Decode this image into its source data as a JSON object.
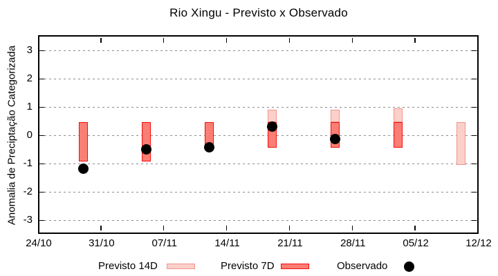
{
  "title": "Rio Xingu - Previsto x Observado",
  "colors": {
    "background": "#ffffff",
    "axis": "#000000",
    "grid": "#8a8a8a",
    "previsto14d_fill": "#fbd0ca",
    "previsto14d_border": "#f2938c",
    "previsto7d_fill": "#fb7e74",
    "previsto7d_border": "#f40b0b",
    "observado": "#000000"
  },
  "chart_data": {
    "type": "bar",
    "title": "Rio Xingu - Previsto x Observado",
    "xlabel": "",
    "ylabel": "Anomalia de Preciptação Categorizada",
    "ylim": [
      -3.5,
      3.5
    ],
    "yticks": [
      3,
      2,
      1,
      0,
      -1,
      -2,
      -3
    ],
    "xtick_labels": [
      "24/10",
      "31/10",
      "07/11",
      "14/11",
      "21/11",
      "28/11",
      "05/12",
      "12/12"
    ],
    "xtick_interval_days": 7,
    "x_total_days": 49,
    "grid": "horizontal-dashed",
    "legend_position": "bottom",
    "series": [
      {
        "name": "Previsto 14D",
        "type": "box",
        "fill": "#fbd0ca",
        "border": "#f2938c",
        "points": [
          {
            "date": "19/11",
            "day": 26,
            "low": 0.45,
            "high": 0.9
          },
          {
            "date": "26/11",
            "day": 33,
            "low": 0.45,
            "high": 0.9
          },
          {
            "date": "03/12",
            "day": 40,
            "low": 0.45,
            "high": 0.95
          },
          {
            "date": "10/12",
            "day": 47,
            "low": -1.05,
            "high": 0.45
          }
        ]
      },
      {
        "name": "Previsto 7D",
        "type": "box",
        "fill": "#fb7e74",
        "border": "#f40b0b",
        "points": [
          {
            "date": "29/10",
            "day": 5,
            "low": -0.95,
            "high": 0.45
          },
          {
            "date": "05/11",
            "day": 12,
            "low": -0.95,
            "high": 0.45
          },
          {
            "date": "12/11",
            "day": 19,
            "low": -0.45,
            "high": 0.45
          },
          {
            "date": "19/11",
            "day": 26,
            "low": -0.45,
            "high": 0.45
          },
          {
            "date": "26/11",
            "day": 33,
            "low": -0.45,
            "high": 0.45
          },
          {
            "date": "03/12",
            "day": 40,
            "low": -0.45,
            "high": 0.45
          }
        ]
      },
      {
        "name": "Observado",
        "type": "scatter",
        "fill": "#000000",
        "points": [
          {
            "date": "29/10",
            "day": 5,
            "value": -1.2
          },
          {
            "date": "05/11",
            "day": 12,
            "value": -0.5
          },
          {
            "date": "12/11",
            "day": 19,
            "value": -0.45
          },
          {
            "date": "19/11",
            "day": 26,
            "value": 0.3
          },
          {
            "date": "26/11",
            "day": 33,
            "value": -0.15
          }
        ]
      }
    ]
  },
  "legend": {
    "items": [
      {
        "label": "Previsto 14D",
        "marker": "box-light"
      },
      {
        "label": "Previsto 7D",
        "marker": "box-dark"
      },
      {
        "label": "Observado",
        "marker": "dot-black"
      }
    ]
  }
}
